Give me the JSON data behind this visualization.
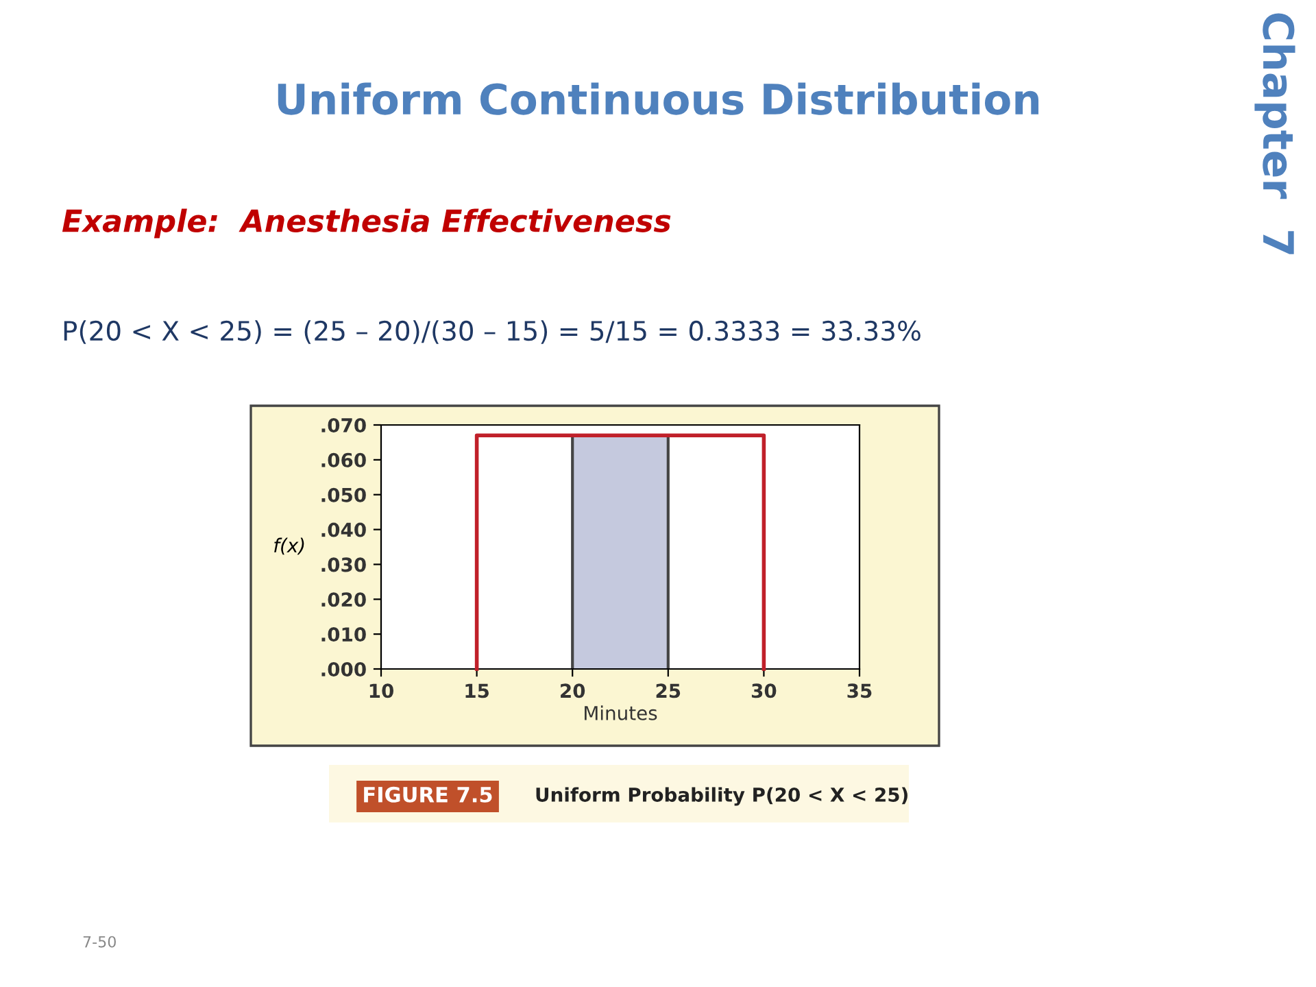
{
  "chart_data": {
    "type": "line",
    "title": "Uniform Continuous Distribution",
    "subtitle": "Example:  Anesthesia Effectiveness",
    "xlabel": "Minutes",
    "ylabel": "f(x)",
    "series": [
      {
        "color": "#c0202a",
        "x": [
          15,
          15,
          30,
          30
        ],
        "values": [
          0,
          0.067,
          0.067,
          0
        ]
      },
      {
        "type": "area",
        "color": "#c5c9de",
        "x": [
          20,
          25
        ],
        "values": [
          0.067,
          0.067
        ]
      }
    ],
    "xlim": [
      10,
      35
    ],
    "xticks": [
      10,
      15,
      20,
      25,
      30,
      35
    ],
    "ylim": [
      0,
      0.07
    ],
    "yticks": [
      {
        "value": 0,
        "label": ".000"
      },
      {
        "value": 0.01,
        "label": ".010"
      },
      {
        "value": 0.02,
        "label": ".020"
      },
      {
        "value": 0.03,
        "label": ".030"
      },
      {
        "value": 0.04,
        "label": ".040"
      },
      {
        "value": 0.05,
        "label": ".050"
      },
      {
        "value": 0.06,
        "label": ".060"
      },
      {
        "value": 0.07,
        "label": ".070"
      }
    ],
    "annotations": [
      "P(20 < X < 25) = (25 – 20)/(30 – 15) = 5/15 = 0.3333 = 33.33%",
      "Chapter  7",
      "FIGURE 7.5",
      "Uniform Probability P(20 < X < 25)",
      "7-50"
    ]
  }
}
